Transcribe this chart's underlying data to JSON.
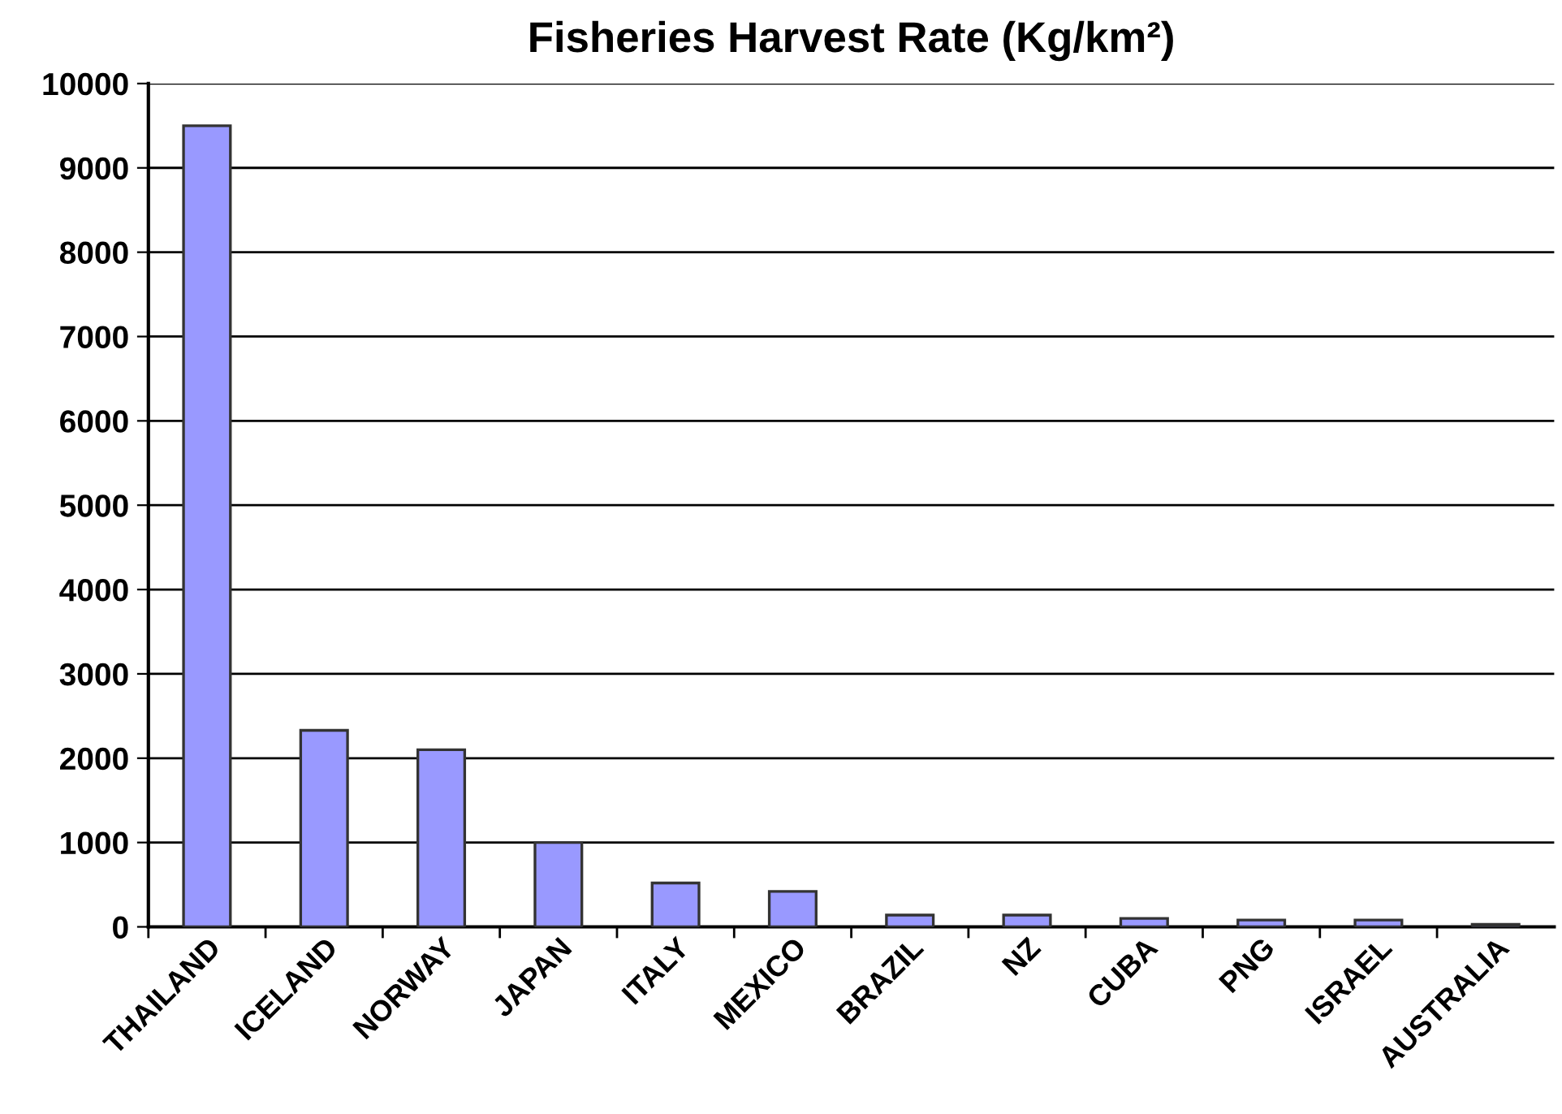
{
  "chart_data": {
    "type": "bar",
    "title": "Fisheries Harvest Rate (Kg/km²)",
    "categories": [
      "THAILAND",
      "ICELAND",
      "NORWAY",
      "JAPAN",
      "ITALY",
      "MEXICO",
      "BRAZIL",
      "NZ",
      "CUBA",
      "PNG",
      "ISRAEL",
      "AUSTRALIA"
    ],
    "values": [
      9500,
      2330,
      2100,
      1000,
      520,
      420,
      140,
      140,
      100,
      80,
      80,
      30
    ],
    "color": "#9999ff",
    "ylim": [
      0,
      10000
    ],
    "yticks": [
      0,
      1000,
      2000,
      3000,
      4000,
      5000,
      6000,
      7000,
      8000,
      9000,
      10000
    ],
    "grid": "y"
  }
}
